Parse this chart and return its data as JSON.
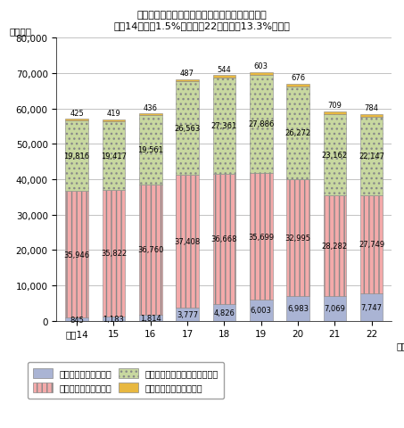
{
  "title_line1": "インターネット広告の占める割合は年々増加し、",
  "title_line2": "平成14年の約1.5%から平成22年には約13.3%に拡大",
  "ylabel": "（億円）",
  "categories": [
    "平成14",
    "15",
    "16",
    "17",
    "18",
    "19",
    "20",
    "21",
    "22"
  ],
  "internet": [
    845,
    1183,
    1814,
    3777,
    4826,
    6003,
    6983,
    7069,
    7747
  ],
  "mass_media": [
    35946,
    35822,
    36760,
    37408,
    36668,
    35699,
    32995,
    28282,
    27749
  ],
  "promotion": [
    19816,
    19417,
    19561,
    26563,
    27361,
    27886,
    26272,
    23162,
    22147
  ],
  "satellite": [
    425,
    419,
    436,
    487,
    544,
    603,
    676,
    709,
    784
  ],
  "internet_color": "#aab4d4",
  "mass_media_color": "#f4aaaa",
  "promotion_color": "#c8d8a0",
  "satellite_color": "#e8b840",
  "legend_internet": "インターネット広告費",
  "legend_mass": "マスコミ四媒体広告費",
  "legend_promotion": "プロモーションメディア広告費",
  "legend_satellite": "衛星メディア関連広告費",
  "ylim": [
    0,
    80000
  ],
  "yticks": [
    0,
    10000,
    20000,
    30000,
    40000,
    50000,
    60000,
    70000,
    80000
  ],
  "bar_width": 0.62,
  "label_fontsize": 6.0,
  "tick_fontsize": 7.5,
  "title_fontsize": 8.0,
  "legend_fontsize": 7.0
}
